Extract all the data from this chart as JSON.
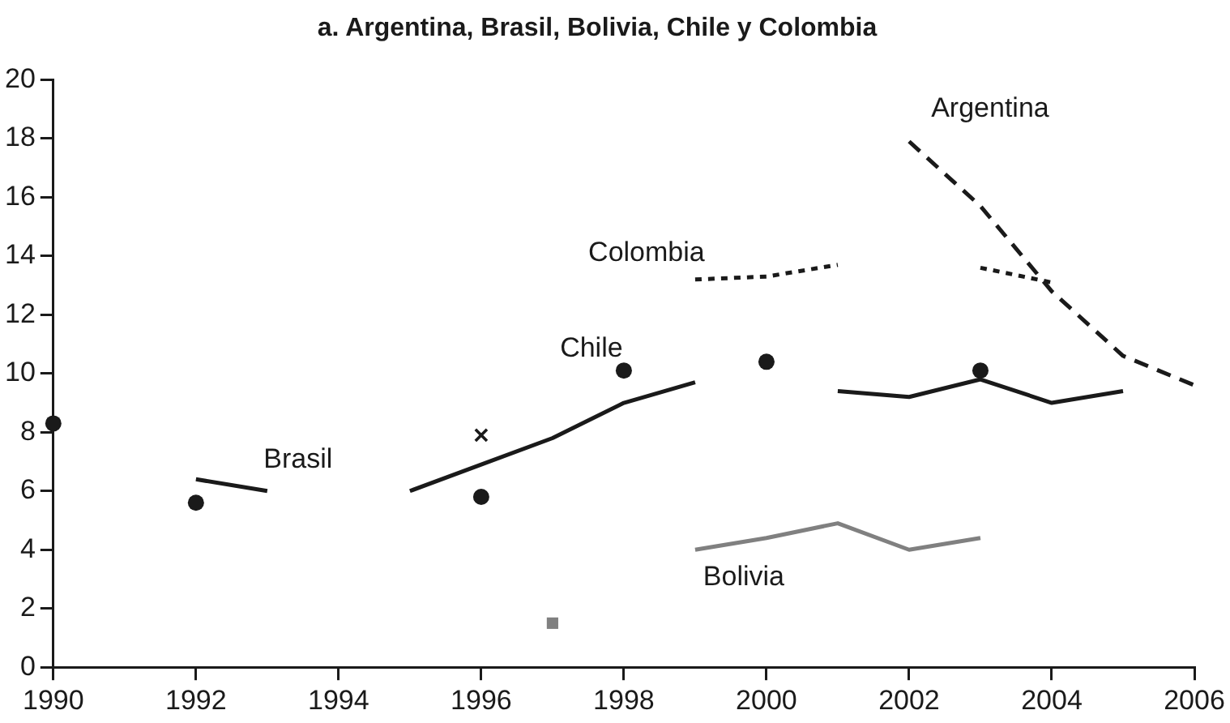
{
  "chart_data": {
    "type": "line",
    "title": "a. Argentina, Brasil, Bolivia, Chile y Colombia",
    "xlim": [
      1990,
      2006
    ],
    "xticks": [
      1990,
      1992,
      1994,
      1996,
      1998,
      2000,
      2002,
      2004,
      2006
    ],
    "ylim": [
      0,
      20
    ],
    "yticks": [
      0,
      2,
      4,
      6,
      8,
      10,
      12,
      14,
      16,
      18,
      20
    ],
    "grid": false,
    "legend": false,
    "series": [
      {
        "name": "Argentina",
        "type": "line",
        "color": "#1a1a1a",
        "line_style": "dashed",
        "marker": "none",
        "x": [
          2002,
          2003,
          2004,
          2005,
          2006
        ],
        "values": [
          17.9,
          15.7,
          12.8,
          10.6,
          9.6
        ]
      },
      {
        "name": "Colombia",
        "type": "line",
        "color": "#1a1a1a",
        "line_style": "dotted",
        "marker": "none",
        "x": [
          1999,
          2000,
          2001,
          2002,
          2003,
          2004
        ],
        "values": [
          13.2,
          13.3,
          13.7,
          null,
          13.6,
          13.1
        ]
      },
      {
        "name": "Chile",
        "type": "line",
        "color": "#1a1a1a",
        "line_style": "solid",
        "marker": "none",
        "x": [
          1995,
          1996,
          1997,
          1998,
          1999,
          2000,
          2001,
          2002,
          2003,
          2004,
          2005
        ],
        "values": [
          6.0,
          6.9,
          7.8,
          9.0,
          9.7,
          null,
          9.4,
          9.2,
          9.8,
          9.0,
          9.4
        ]
      },
      {
        "name": "Brasil",
        "type": "line",
        "color": "#1a1a1a",
        "line_style": "solid",
        "marker": "none",
        "x": [
          1992,
          1993
        ],
        "values": [
          6.4,
          6.0
        ]
      },
      {
        "name": "Bolivia",
        "type": "line",
        "color": "#808080",
        "line_style": "solid",
        "marker": "none",
        "x": [
          1999,
          2000,
          2001,
          2002,
          2003
        ],
        "values": [
          4.0,
          4.4,
          4.9,
          4.0,
          4.4
        ]
      },
      {
        "type": "scatter",
        "color": "#1a1a1a",
        "marker": "circle",
        "x": [
          1990,
          1992,
          1996,
          1998,
          2000,
          2003
        ],
        "values": [
          8.3,
          5.6,
          5.8,
          10.1,
          10.4,
          10.1
        ]
      },
      {
        "type": "scatter",
        "color": "#1a1a1a",
        "marker": "cross",
        "x": [
          1996
        ],
        "values": [
          7.9
        ]
      },
      {
        "type": "scatter",
        "color": "#808080",
        "marker": "square",
        "x": [
          1997
        ],
        "values": [
          1.5
        ]
      }
    ]
  }
}
